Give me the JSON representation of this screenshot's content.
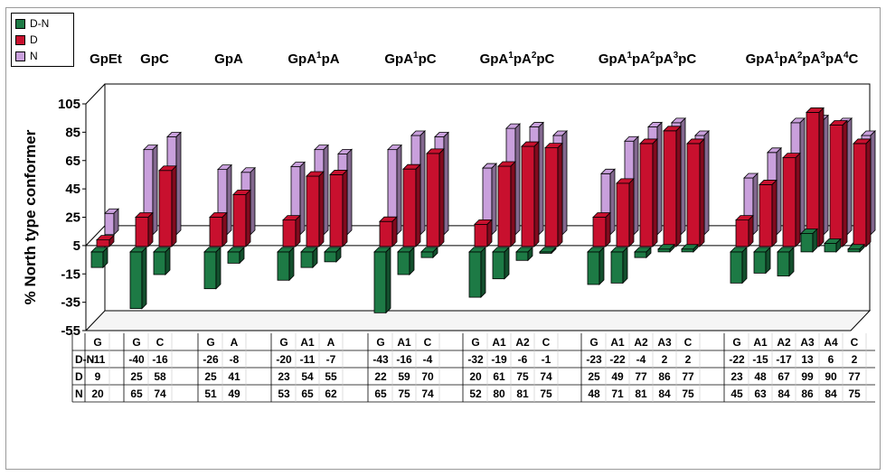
{
  "colors": {
    "dn": "#1d7a45",
    "d": "#c8102e",
    "n": "#c9a0dc"
  },
  "chart_data": {
    "type": "bar",
    "title": "",
    "ylabel": "% North type conformer",
    "ylim": [
      -55,
      105
    ],
    "yticks": [
      -55,
      -35,
      -15,
      5,
      25,
      45,
      65,
      85,
      105
    ],
    "legend": [
      "D-N",
      "D",
      "N"
    ],
    "legend_position": "top-left",
    "table_row_labels": [
      "D-N",
      "D",
      "N"
    ],
    "groups": [
      {
        "name_parts": [
          [
            "GpEt",
            false
          ]
        ],
        "categories": [
          "G"
        ],
        "dn": [
          -11
        ],
        "d": [
          9
        ],
        "n": [
          20
        ]
      },
      {
        "name_parts": [
          [
            "GpC",
            false
          ]
        ],
        "categories": [
          "G",
          "C"
        ],
        "dn": [
          -40,
          -16
        ],
        "d": [
          25,
          58
        ],
        "n": [
          65,
          74
        ]
      },
      {
        "name_parts": [
          [
            "GpA",
            false
          ]
        ],
        "categories": [
          "G",
          "A"
        ],
        "dn": [
          -26,
          -8
        ],
        "d": [
          25,
          41
        ],
        "n": [
          51,
          49
        ]
      },
      {
        "name_parts": [
          [
            "GpA",
            false
          ],
          [
            "1",
            true
          ],
          [
            "pA",
            false
          ]
        ],
        "categories": [
          "G",
          "A1",
          "A"
        ],
        "dn": [
          -20,
          -11,
          -7
        ],
        "d": [
          23,
          54,
          55
        ],
        "n": [
          53,
          65,
          62
        ]
      },
      {
        "name_parts": [
          [
            "GpA",
            false
          ],
          [
            "1",
            true
          ],
          [
            "pC",
            false
          ]
        ],
        "categories": [
          "G",
          "A1",
          "C"
        ],
        "dn": [
          -43,
          -16,
          -4
        ],
        "d": [
          22,
          59,
          70
        ],
        "n": [
          65,
          75,
          74
        ]
      },
      {
        "name_parts": [
          [
            "GpA",
            false
          ],
          [
            "1",
            true
          ],
          [
            "pA",
            false
          ],
          [
            "2",
            true
          ],
          [
            "pC",
            false
          ]
        ],
        "categories": [
          "G",
          "A1",
          "A2",
          "C"
        ],
        "dn": [
          -32,
          -19,
          -6,
          -1
        ],
        "d": [
          20,
          61,
          75,
          74
        ],
        "n": [
          52,
          80,
          81,
          75
        ]
      },
      {
        "name_parts": [
          [
            "GpA",
            false
          ],
          [
            "1",
            true
          ],
          [
            "pA",
            false
          ],
          [
            "2",
            true
          ],
          [
            "pA",
            false
          ],
          [
            "3",
            true
          ],
          [
            "pC",
            false
          ]
        ],
        "categories": [
          "G",
          "A1",
          "A2",
          "A3",
          "C"
        ],
        "dn": [
          -23,
          -22,
          -4,
          2,
          2
        ],
        "d": [
          25,
          49,
          77,
          86,
          77
        ],
        "n": [
          48,
          71,
          81,
          84,
          75
        ]
      },
      {
        "name_parts": [
          [
            "GpA",
            false
          ],
          [
            "1",
            true
          ],
          [
            "pA",
            false
          ],
          [
            "2",
            true
          ],
          [
            "pA",
            false
          ],
          [
            "3",
            true
          ],
          [
            "pA",
            false
          ],
          [
            "4",
            true
          ],
          [
            "C",
            false
          ]
        ],
        "categories": [
          "G",
          "A1",
          "A2",
          "A3",
          "A4",
          "C"
        ],
        "dn": [
          -22,
          -15,
          -17,
          13,
          6,
          2
        ],
        "d": [
          23,
          48,
          67,
          99,
          90,
          77
        ],
        "n": [
          45,
          63,
          84,
          86,
          84,
          75
        ]
      }
    ]
  }
}
